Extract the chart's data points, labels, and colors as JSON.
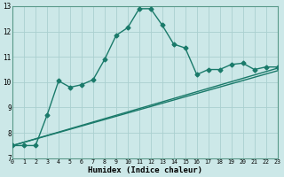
{
  "xlabel": "Humidex (Indice chaleur)",
  "bg_color": "#cce8e8",
  "grid_color": "#aad0d0",
  "line_color": "#1a7a6a",
  "xlim": [
    0,
    23
  ],
  "ylim": [
    7,
    13
  ],
  "yticks": [
    7,
    8,
    9,
    10,
    11,
    12,
    13
  ],
  "xticks": [
    0,
    1,
    2,
    3,
    4,
    5,
    6,
    7,
    8,
    9,
    10,
    11,
    12,
    13,
    14,
    15,
    16,
    17,
    18,
    19,
    20,
    21,
    22,
    23
  ],
  "line1_x": [
    0,
    1,
    2,
    3,
    4,
    5,
    6,
    7,
    8,
    9,
    10,
    11,
    12,
    13,
    14,
    15,
    16,
    17,
    18,
    19,
    20,
    21,
    22,
    23
  ],
  "line1_y": [
    7.5,
    7.5,
    7.5,
    8.7,
    10.05,
    9.8,
    9.9,
    10.1,
    10.9,
    11.85,
    12.15,
    12.9,
    12.9,
    12.25,
    11.5,
    11.35,
    10.3,
    10.5,
    10.5,
    10.7,
    10.75,
    10.5,
    10.6,
    10.6
  ],
  "line2_x": [
    0,
    23
  ],
  "line2_y": [
    7.5,
    10.55
  ],
  "line3_x": [
    0,
    23
  ],
  "line3_y": [
    7.5,
    10.45
  ],
  "marker": "D",
  "markersize": 2.5,
  "linewidth": 1.0
}
